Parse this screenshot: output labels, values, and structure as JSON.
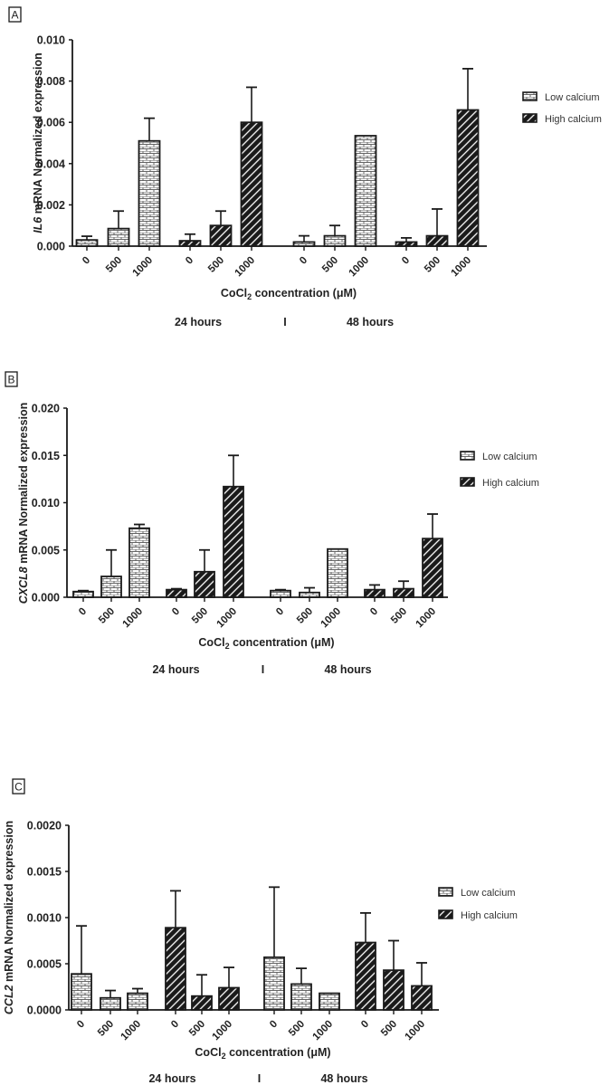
{
  "legend": {
    "low": "Low calcium",
    "high": "High calcium"
  },
  "x_title": {
    "pre": "CoCl",
    "sub": "2",
    "post": " concentration (μM)"
  },
  "time_labels": {
    "left": "24 hours",
    "sep": "I",
    "right": "48 hours"
  },
  "colors": {
    "ink": "#1a1a1a",
    "low_fill": "#ffffff",
    "high_fill": "#1a1a1a"
  },
  "chart_data": [
    {
      "type": "bar",
      "panel": "A",
      "title": "",
      "ylabel": "IL6 mRNA Normalized expression",
      "ylabel_italic": "IL6",
      "ylabel_rest": " mRNA Normalized expression",
      "xlabel": "CoCl2 concentration (μM)",
      "ylim": [
        0,
        0.01
      ],
      "yticks": [
        "0.000",
        "0.002",
        "0.004",
        "0.006",
        "0.008",
        "0.010"
      ],
      "categories": [
        "0",
        "500",
        "1000",
        "0",
        "500",
        "1000",
        "0",
        "500",
        "1000",
        "0",
        "500",
        "1000"
      ],
      "groups": [
        "24 hours",
        "48 hours"
      ],
      "series": [
        {
          "name": "Low calcium",
          "time": "24 hours",
          "values": [
            0.0003,
            0.00085,
            0.0051
          ],
          "errors": [
            0.00048,
            0.0017,
            0.0062
          ]
        },
        {
          "name": "High calcium",
          "time": "24 hours",
          "values": [
            0.00026,
            0.001,
            0.006
          ],
          "errors": [
            0.00058,
            0.0017,
            0.0077
          ]
        },
        {
          "name": "Low calcium",
          "time": "48 hours",
          "values": [
            0.0002,
            0.0005,
            0.00535
          ],
          "errors": [
            0.0005,
            0.001,
            null
          ]
        },
        {
          "name": "High calcium",
          "time": "48 hours",
          "values": [
            0.0002,
            0.0005,
            0.0066
          ],
          "errors": [
            0.0004,
            0.0018,
            0.0086
          ]
        }
      ],
      "legend_position": "right"
    },
    {
      "type": "bar",
      "panel": "B",
      "title": "",
      "ylabel": "CXCL8 mRNA Normalized expression",
      "ylabel_italic": "CXCL8",
      "ylabel_rest": "  mRNA Normalized expression",
      "xlabel": "CoCl2 concentration (μM)",
      "ylim": [
        0,
        0.02
      ],
      "yticks": [
        "0.000",
        "0.005",
        "0.010",
        "0.015",
        "0.020"
      ],
      "categories": [
        "0",
        "500",
        "1000",
        "0",
        "500",
        "1000",
        "0",
        "500",
        "1000",
        "0",
        "500",
        "1000"
      ],
      "groups": [
        "24 hours",
        "48 hours"
      ],
      "series": [
        {
          "name": "Low calcium",
          "time": "24 hours",
          "values": [
            0.0006,
            0.0022,
            0.0073
          ],
          "errors": [
            0.0007,
            0.005,
            0.0077
          ]
        },
        {
          "name": "High calcium",
          "time": "24 hours",
          "values": [
            0.0008,
            0.0027,
            0.0117
          ],
          "errors": [
            0.0009,
            0.005,
            0.015
          ]
        },
        {
          "name": "Low calcium",
          "time": "48 hours",
          "values": [
            0.0007,
            0.0005,
            0.0051
          ],
          "errors": [
            0.0008,
            0.001,
            null
          ]
        },
        {
          "name": "High calcium",
          "time": "48 hours",
          "values": [
            0.0008,
            0.0009,
            0.0062
          ],
          "errors": [
            0.0013,
            0.0017,
            0.0088
          ]
        }
      ],
      "legend_position": "right"
    },
    {
      "type": "bar",
      "panel": "C",
      "title": "",
      "ylabel": "CCL2 mRNA Normalized expression",
      "ylabel_italic": "CCL2",
      "ylabel_rest": " mRNA Normalized expression",
      "xlabel": "CoCl2 concentration (μM)",
      "ylim": [
        0,
        0.002
      ],
      "yticks": [
        "0.0000",
        "0.0005",
        "0.0010",
        "0.0015",
        "0.0020"
      ],
      "categories": [
        "0",
        "500",
        "1000",
        "0",
        "500",
        "1000",
        "0",
        "500",
        "1000",
        "0",
        "500",
        "1000"
      ],
      "groups": [
        "24 hours",
        "48 hours"
      ],
      "series": [
        {
          "name": "Low calcium",
          "time": "24 hours",
          "values": [
            0.00039,
            0.00013,
            0.00018
          ],
          "errors": [
            0.00091,
            0.00021,
            0.00023
          ]
        },
        {
          "name": "High calcium",
          "time": "24 hours",
          "values": [
            0.00089,
            0.00015,
            0.00024
          ],
          "errors": [
            0.00129,
            0.00038,
            0.00046
          ]
        },
        {
          "name": "Low calcium",
          "time": "48 hours",
          "values": [
            0.00057,
            0.00028,
            0.00018
          ],
          "errors": [
            0.00133,
            0.00045,
            null
          ]
        },
        {
          "name": "High calcium",
          "time": "48 hours",
          "values": [
            0.00073,
            0.00043,
            0.00026
          ],
          "errors": [
            0.00105,
            0.00075,
            0.00051
          ]
        }
      ],
      "legend_position": "right"
    }
  ]
}
